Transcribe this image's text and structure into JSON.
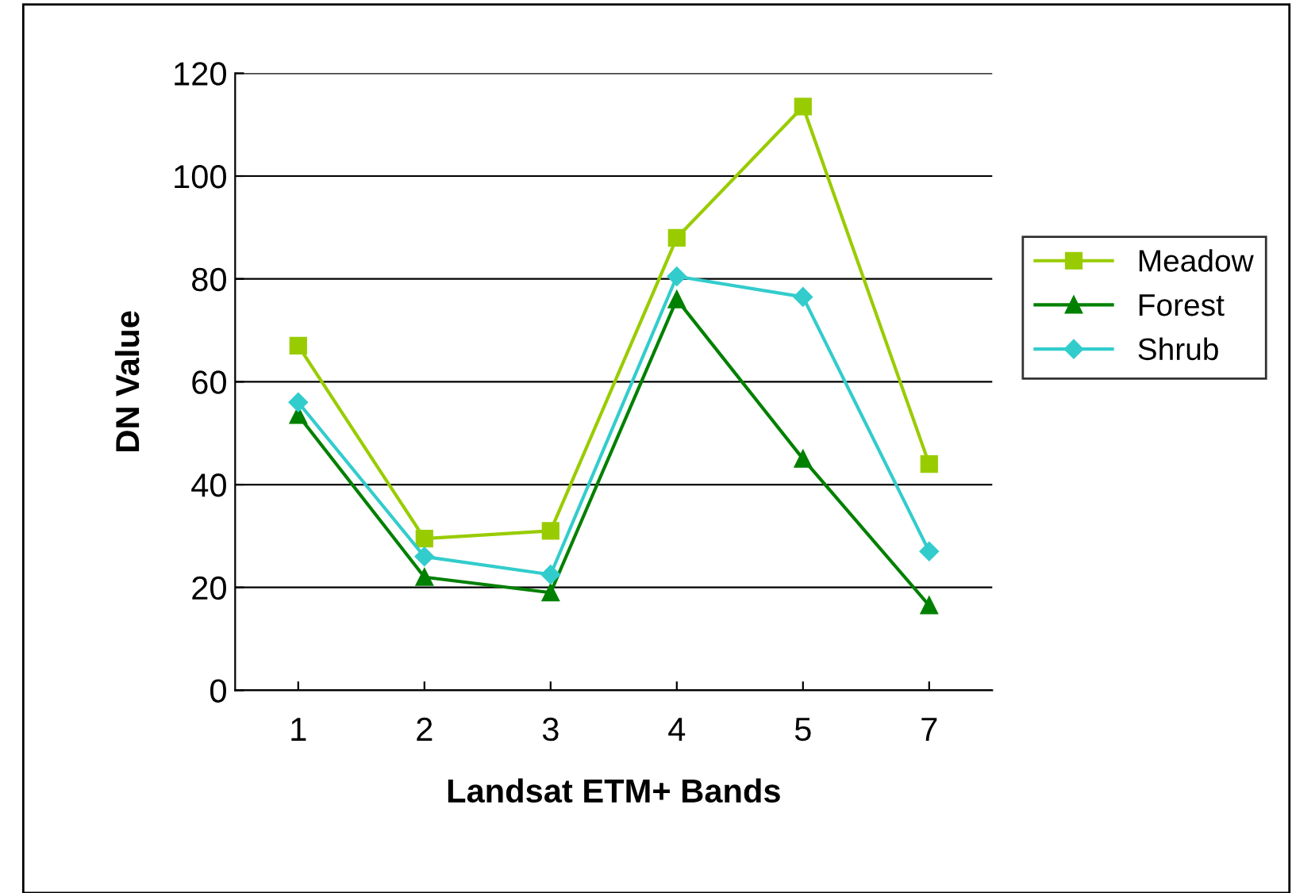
{
  "chart_data": {
    "type": "line",
    "xlabel": "Landsat ETM+ Bands",
    "ylabel": "DN Value",
    "categories": [
      "1",
      "2",
      "3",
      "4",
      "5",
      "7"
    ],
    "series": [
      {
        "name": "Meadow",
        "color": "#99cc00",
        "marker": "square",
        "values": [
          67,
          29.5,
          31,
          88,
          113.5,
          44
        ]
      },
      {
        "name": "Forest",
        "color": "#008000",
        "marker": "triangle",
        "values": [
          53.5,
          22,
          19,
          76,
          45,
          16.5
        ]
      },
      {
        "name": "Shrub",
        "color": "#33cccc",
        "marker": "diamond",
        "values": [
          56,
          26,
          22.5,
          80.5,
          76.5,
          27
        ]
      }
    ],
    "ylim": [
      0,
      120
    ],
    "yticks": [
      0,
      20,
      40,
      60,
      80,
      100,
      120
    ],
    "grid": "y",
    "legend": "right"
  }
}
